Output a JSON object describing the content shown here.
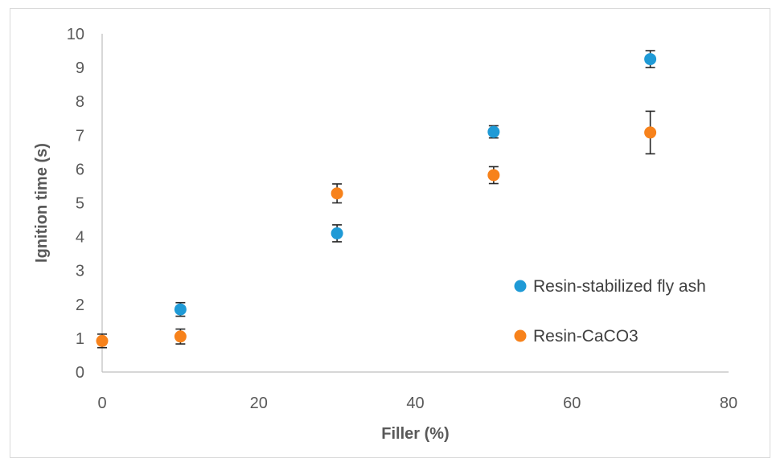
{
  "chart_data": {
    "type": "scatter",
    "title": "",
    "xlabel": "Filler (%)",
    "ylabel": "Ignition time (s)",
    "xlim": [
      0,
      80
    ],
    "ylim": [
      0,
      10
    ],
    "xticks": [
      0,
      20,
      40,
      60,
      80
    ],
    "yticks": [
      0,
      1,
      2,
      3,
      4,
      5,
      6,
      7,
      8,
      9,
      10
    ],
    "grid": false,
    "legend_position": "right",
    "series": [
      {
        "name": "Resin-stabilized fly ash",
        "color": "#1f9ad6",
        "points": [
          {
            "x": 10,
            "y": 1.85,
            "err": 0.2
          },
          {
            "x": 30,
            "y": 4.1,
            "err": 0.25
          },
          {
            "x": 50,
            "y": 7.1,
            "err": 0.18
          },
          {
            "x": 70,
            "y": 9.25,
            "err": 0.25
          }
        ]
      },
      {
        "name": "Resin-CaCO3",
        "color": "#f7821b",
        "points": [
          {
            "x": 0,
            "y": 0.92,
            "err": 0.2
          },
          {
            "x": 10,
            "y": 1.05,
            "err": 0.22
          },
          {
            "x": 30,
            "y": 5.28,
            "err": 0.28
          },
          {
            "x": 50,
            "y": 5.82,
            "err": 0.25
          },
          {
            "x": 70,
            "y": 7.08,
            "err": 0.63
          }
        ]
      }
    ]
  }
}
